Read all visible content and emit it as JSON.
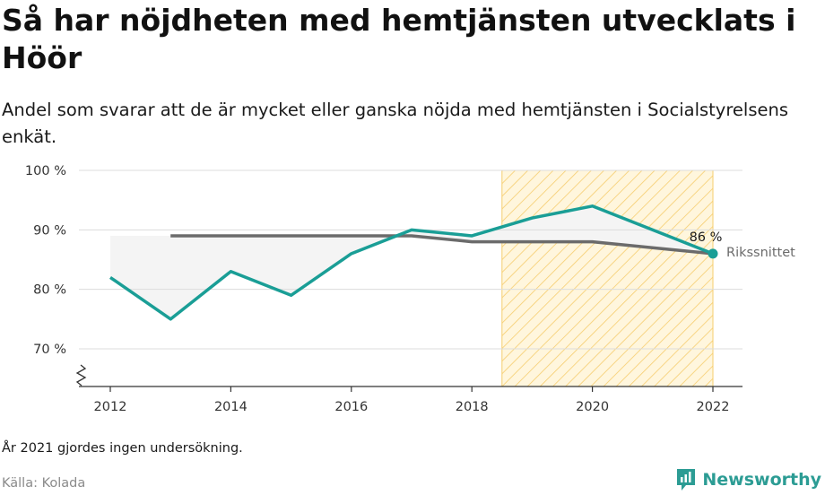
{
  "title": "Så har nöjdheten med hemtjänsten utvecklats i Höör",
  "subtitle": "Andel som svarar att de är mycket eller ganska nöjda med hemtjänsten i Socialstyrelsens enkät.",
  "footnote": "År 2021 gjordes ingen undersökning.",
  "source": "Källa: Kolada",
  "brand": "Newsworthy",
  "colors": {
    "municipality": "#1a9e96",
    "national": "#6b6b6b",
    "highlight_fill": "#fff6dd",
    "highlight_stripe": "#f6cd6e",
    "gap_fill": "#f4f4f4",
    "grid": "#dcdcdc",
    "brand": "#2c9c94"
  },
  "chart_data": {
    "type": "line",
    "x_ticks": [
      2012,
      2014,
      2016,
      2018,
      2020,
      2022
    ],
    "y_ticks": [
      70,
      80,
      90,
      100
    ],
    "y_tick_labels": [
      "70 %",
      "80 %",
      "90 %",
      "100 %"
    ],
    "xlim": [
      2012,
      2022
    ],
    "ylim": [
      70,
      100
    ],
    "y_axis_broken": true,
    "grid": "horizontal",
    "highlight_period": [
      2018.5,
      2022
    ],
    "series": [
      {
        "role": "municipality",
        "x": [
          2012,
          2013,
          2014,
          2015,
          2016,
          2017,
          2018,
          2019,
          2020,
          2022
        ],
        "y": [
          82,
          75,
          83,
          79,
          86,
          90,
          89,
          92,
          94,
          86
        ]
      },
      {
        "name": "Rikssnittet",
        "role": "national",
        "x": [
          2013,
          2014,
          2015,
          2016,
          2017,
          2018,
          2019,
          2020,
          2022
        ],
        "y": [
          89,
          89,
          89,
          89,
          89,
          88,
          88,
          88,
          86
        ]
      }
    ],
    "annotations": [
      {
        "x": 2022,
        "y": 86,
        "text": "86 %"
      }
    ]
  }
}
